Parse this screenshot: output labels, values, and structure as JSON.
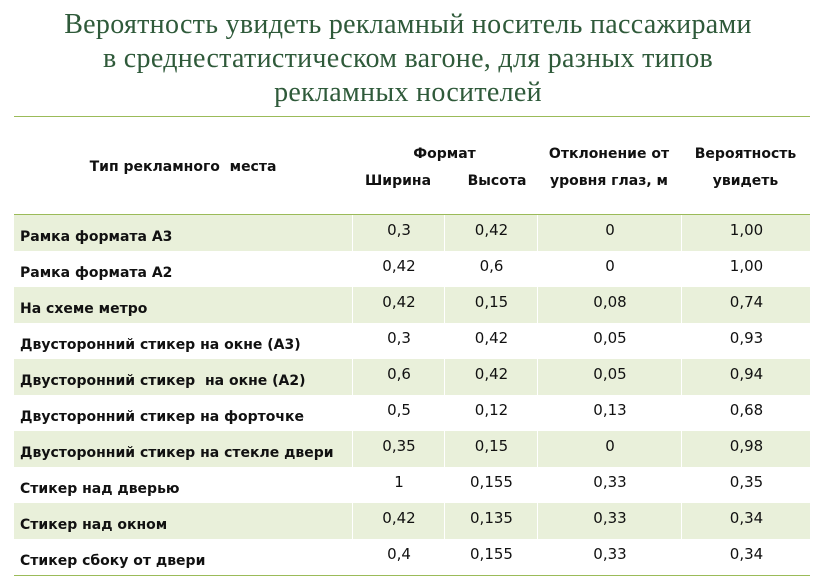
{
  "title": [
    "Вероятность увидеть рекламный носитель пассажирами",
    "в среднестатистическом вагоне, для разных типов",
    "рекламных носителей"
  ],
  "table": {
    "header": {
      "type": "Тип рекламного  места",
      "format": "Формат",
      "width": "Ширина",
      "height": "Высота",
      "deviation": [
        "Отклонение от",
        "уровня глаз, м"
      ],
      "probability": [
        "Вероятность",
        "увидеть"
      ]
    },
    "rows": [
      [
        "Рамка формата А3",
        "0,3",
        "0,42",
        "0",
        "1,00"
      ],
      [
        "Рамка формата А2",
        "0,42",
        "0,6",
        "0",
        "1,00"
      ],
      [
        "На схеме метро",
        "0,42",
        "0,15",
        "0,08",
        "0,74"
      ],
      [
        "Двусторонний стикер на окне (А3)",
        "0,3",
        "0,42",
        "0,05",
        "0,93"
      ],
      [
        "Двусторонний стикер  на окне (А2)",
        "0,6",
        "0,42",
        "0,05",
        "0,94"
      ],
      [
        "Двусторонний стикер на форточке",
        "0,5",
        "0,12",
        "0,13",
        "0,68"
      ],
      [
        "Двусторонний стикер на стекле двери",
        "0,35",
        "0,15",
        "0",
        "0,98"
      ],
      [
        "Стикер над дверью",
        "1",
        "0,155",
        "0,33",
        "0,35"
      ],
      [
        "Стикер над окном",
        "0,42",
        "0,135",
        "0,33",
        "0,34"
      ],
      [
        "Стикер сбоку от двери",
        "0,4",
        "0,155",
        "0,33",
        "0,34"
      ]
    ]
  }
}
